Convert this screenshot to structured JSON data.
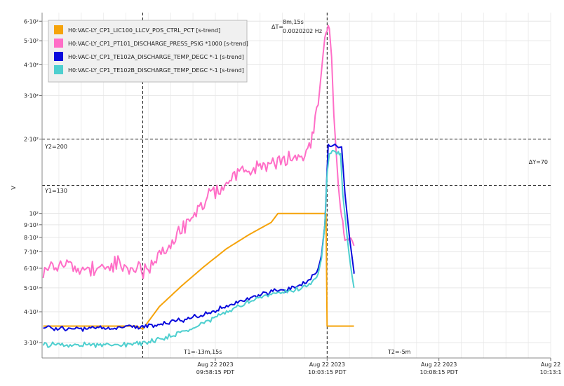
{
  "chart_data": {
    "type": "line",
    "ylabel": "V",
    "y_scale": "log",
    "ylim": [
      26,
      650
    ],
    "x_ticks": [
      {
        "date": "Aug 22 2023",
        "time": "09:58:15 PDT",
        "t_min": -10
      },
      {
        "date": "Aug 22 2023",
        "time": "10:03:15 PDT",
        "t_min": -5
      },
      {
        "date": "Aug 22 2023",
        "time": "10:08:15 PDT",
        "t_min": 0
      },
      {
        "date": "Aug 22",
        "time": "10:13:1",
        "t_min": 5
      }
    ],
    "y_ticks": [
      {
        "label": "3·10¹",
        "value": 30
      },
      {
        "label": "4·10¹",
        "value": 40
      },
      {
        "label": "5·10¹",
        "value": 50
      },
      {
        "label": "6·10¹",
        "value": 60
      },
      {
        "label": "7·10¹",
        "value": 70
      },
      {
        "label": "8·10¹",
        "value": 80
      },
      {
        "label": "9·10¹",
        "value": 90
      },
      {
        "label": "10²",
        "value": 100
      },
      {
        "label": "2·10²",
        "value": 200
      },
      {
        "label": "3·10²",
        "value": 300
      },
      {
        "label": "4·10²",
        "value": 400
      },
      {
        "label": "5·10²",
        "value": 500
      },
      {
        "label": "6·10²",
        "value": 600
      }
    ],
    "grid": true,
    "legend_position": "top-left",
    "cursors": {
      "x1_label": "T1=-13m,15s",
      "x1_min": -13.25,
      "x2_label": "T2=-5m",
      "x2_min": -5,
      "dt_label": "ΔT=",
      "dt_value": "8m,15s",
      "freq_value": "0.0020202 Hz",
      "y1_label": "Y1=130",
      "y1_value": 130,
      "y2_label": "Y2=200",
      "y2_value": 200,
      "dy_label": "ΔY=70"
    },
    "series": [
      {
        "name": "H0:VAC-LY_CP1_LIC100_LLCV_POS_CTRL_PCT [s-trend]",
        "color": "#f5a30a",
        "points": [
          [
            -17.7,
            35
          ],
          [
            -13.5,
            35
          ],
          [
            -13.25,
            34
          ],
          [
            -12.5,
            42
          ],
          [
            -11.5,
            51
          ],
          [
            -10.5,
            61
          ],
          [
            -9.5,
            72
          ],
          [
            -8.5,
            82
          ],
          [
            -7.5,
            92
          ],
          [
            -7.2,
            100
          ],
          [
            -5.05,
            100
          ],
          [
            -5.0,
            35
          ],
          [
            -3.8,
            35
          ]
        ]
      },
      {
        "name": "H0:VAC-LY_CP1_PT101_DISCHARGE_PRESS_PSIG *1000 [s-trend]",
        "color": "#ff6ec7",
        "points": [
          [
            -17.7,
            60
          ],
          [
            -16.5,
            61
          ],
          [
            -15.5,
            60
          ],
          [
            -14.5,
            61
          ],
          [
            -13.5,
            60
          ],
          [
            -13.3,
            58
          ],
          [
            -13.0,
            59
          ],
          [
            -12.5,
            67
          ],
          [
            -12.0,
            76
          ],
          [
            -11.5,
            86
          ],
          [
            -11.0,
            98
          ],
          [
            -10.5,
            110
          ],
          [
            -10.0,
            122
          ],
          [
            -9.5,
            133
          ],
          [
            -9.0,
            143
          ],
          [
            -8.5,
            151
          ],
          [
            -8.0,
            157
          ],
          [
            -7.5,
            160
          ],
          [
            -7.0,
            163
          ],
          [
            -6.5,
            166
          ],
          [
            -6.0,
            170
          ],
          [
            -5.8,
            186
          ],
          [
            -5.6,
            215
          ],
          [
            -5.4,
            275
          ],
          [
            -5.25,
            380
          ],
          [
            -5.1,
            520
          ],
          [
            -5.0,
            595
          ],
          [
            -4.9,
            560
          ],
          [
            -4.8,
            430
          ],
          [
            -4.7,
            250
          ],
          [
            -4.6,
            180
          ],
          [
            -4.5,
            130
          ],
          [
            -4.4,
            105
          ],
          [
            -4.3,
            90
          ],
          [
            -4.2,
            80
          ],
          [
            -4.0,
            75
          ],
          [
            -3.8,
            74
          ]
        ]
      },
      {
        "name": "H0:VAC-LY_CP1_TE102A_DISCHARGE_TEMP_DEGC *-1 [s-trend]",
        "color": "#0a0adc",
        "points": [
          [
            -17.7,
            34.5
          ],
          [
            -16,
            34.2
          ],
          [
            -14.5,
            34.5
          ],
          [
            -13.5,
            34.7
          ],
          [
            -13.25,
            34.5
          ],
          [
            -12.5,
            35.5
          ],
          [
            -11.5,
            37
          ],
          [
            -10.5,
            39
          ],
          [
            -9.5,
            42
          ],
          [
            -8.5,
            45
          ],
          [
            -7.5,
            48
          ],
          [
            -6.5,
            50
          ],
          [
            -6.0,
            52
          ],
          [
            -5.6,
            56
          ],
          [
            -5.4,
            60
          ],
          [
            -5.25,
            68
          ],
          [
            -5.1,
            90
          ],
          [
            -5.0,
            150
          ],
          [
            -4.95,
            188
          ],
          [
            -4.5,
            188
          ],
          [
            -4.35,
            186
          ],
          [
            -4.2,
            120
          ],
          [
            -4.0,
            80
          ],
          [
            -3.8,
            58
          ],
          [
            -3.8,
            57
          ]
        ]
      },
      {
        "name": "H0:VAC-LY_CP1_TE102B_DISCHARGE_TEMP_DEGC *-1 [s-trend]",
        "color": "#4ecfcf",
        "points": [
          [
            -17.7,
            29.5
          ],
          [
            -16,
            29.3
          ],
          [
            -14.5,
            29.5
          ],
          [
            -13.5,
            29.7
          ],
          [
            -13.25,
            29.8
          ],
          [
            -12.5,
            31
          ],
          [
            -11.5,
            33
          ],
          [
            -10.5,
            36
          ],
          [
            -9.5,
            40
          ],
          [
            -8.5,
            44
          ],
          [
            -7.5,
            47
          ],
          [
            -6.5,
            49
          ],
          [
            -6.0,
            50
          ],
          [
            -5.6,
            53
          ],
          [
            -5.4,
            57
          ],
          [
            -5.25,
            66
          ],
          [
            -5.1,
            90
          ],
          [
            -5.0,
            145
          ],
          [
            -4.9,
            175
          ],
          [
            -4.5,
            178
          ],
          [
            -4.4,
            175
          ],
          [
            -4.3,
            120
          ],
          [
            -4.1,
            80
          ],
          [
            -3.95,
            60
          ],
          [
            -3.8,
            50
          ]
        ]
      }
    ]
  }
}
